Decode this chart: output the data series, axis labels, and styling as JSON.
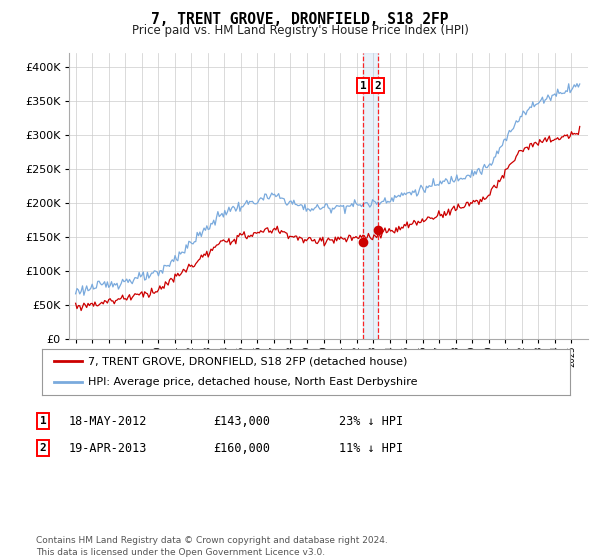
{
  "title": "7, TRENT GROVE, DRONFIELD, S18 2FP",
  "subtitle": "Price paid vs. HM Land Registry's House Price Index (HPI)",
  "legend_line1": "7, TRENT GROVE, DRONFIELD, S18 2FP (detached house)",
  "legend_line2": "HPI: Average price, detached house, North East Derbyshire",
  "footer": "Contains HM Land Registry data © Crown copyright and database right 2024.\nThis data is licensed under the Open Government Licence v3.0.",
  "annotation1_date": "18-MAY-2012",
  "annotation1_price": "£143,000",
  "annotation1_hpi": "23% ↓ HPI",
  "annotation2_date": "19-APR-2013",
  "annotation2_price": "£160,000",
  "annotation2_hpi": "11% ↓ HPI",
  "sale1_year": 2012.38,
  "sale1_price": 143000,
  "sale2_year": 2013.3,
  "sale2_price": 160000,
  "red_color": "#cc0000",
  "blue_color": "#7aaadd",
  "span_color": "#aaccee",
  "background_color": "#ffffff",
  "grid_color": "#cccccc",
  "ylim_min": 0,
  "ylim_max": 420000,
  "yticks": [
    0,
    50000,
    100000,
    150000,
    200000,
    250000,
    300000,
    350000,
    400000
  ],
  "xlim_min": 1994.6,
  "xlim_max": 2026.0
}
